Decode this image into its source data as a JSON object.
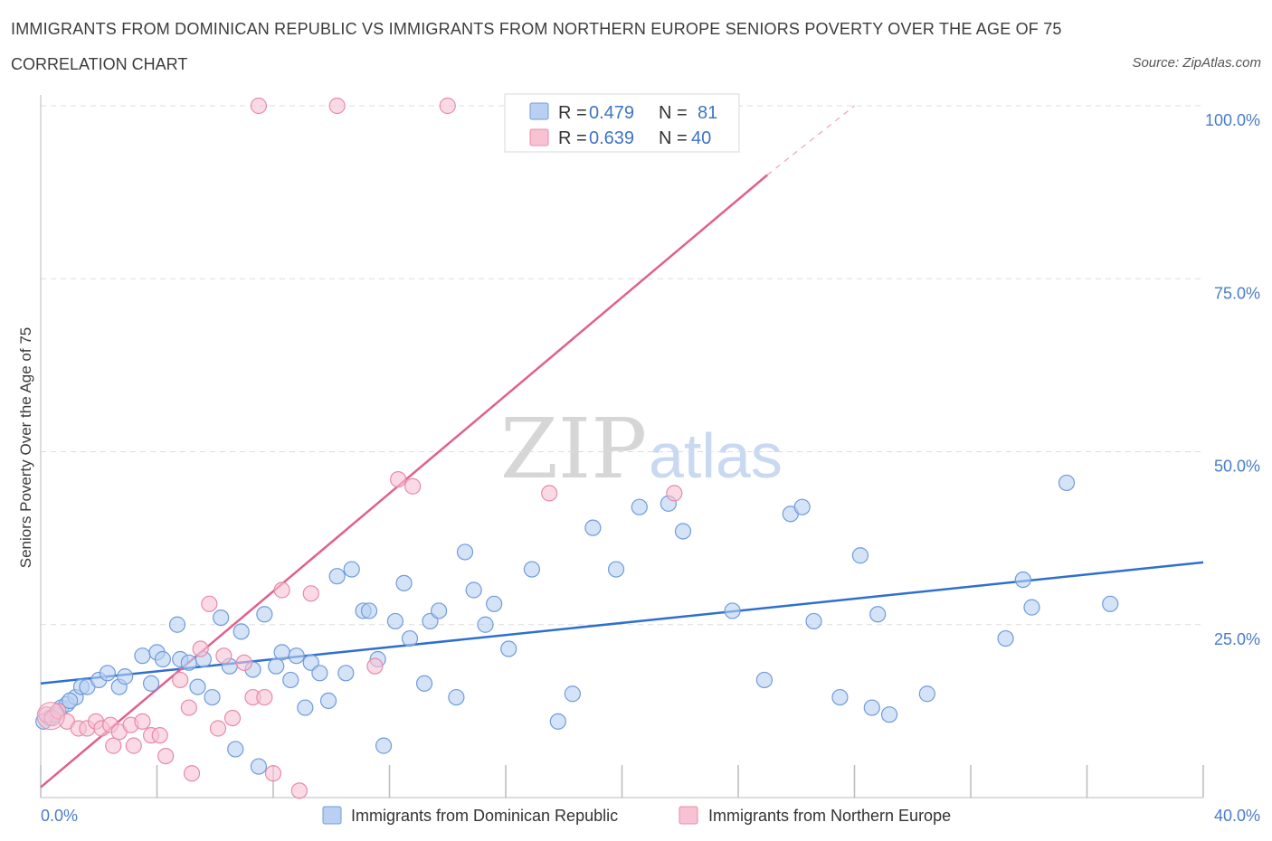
{
  "header": {
    "title": "IMMIGRANTS FROM DOMINICAN REPUBLIC VS IMMIGRANTS FROM NORTHERN EUROPE SENIORS POVERTY OVER THE AGE OF 75",
    "subtitle": "CORRELATION CHART",
    "source": "Source: ZipAtlas.com"
  },
  "watermark": {
    "part1": "ZIP",
    "part2": "atlas"
  },
  "legend_top": {
    "rows": [
      {
        "r_label": "R =",
        "r_value": "0.479",
        "n_label": "N =",
        "n_value": "81"
      },
      {
        "r_label": "R =",
        "r_value": "0.639",
        "n_label": "N =",
        "n_value": "40"
      }
    ]
  },
  "colors": {
    "blue_fill": "#b9d0f2",
    "blue_stroke": "#6f9bdd",
    "blue_line": "#2f6fce",
    "pink_fill": "#f7c3d3",
    "pink_stroke": "#e88aa8",
    "pink_line": "#e0608d",
    "grid": "#dddddd",
    "tick_text": "#4a7cc9"
  },
  "chart_data": {
    "type": "scatter",
    "title": "IMMIGRANTS FROM DOMINICAN REPUBLIC VS IMMIGRANTS FROM NORTHERN EUROPE SENIORS POVERTY OVER THE AGE OF 75",
    "xlabel": "",
    "ylabel": "Seniors Poverty Over the Age of 75",
    "xlim": [
      0,
      40
    ],
    "ylim": [
      0,
      100
    ],
    "x_tick_labels": [
      "0.0%",
      "40.0%"
    ],
    "y_tick_labels": [
      "100.0%",
      "75.0%",
      "50.0%",
      "25.0%"
    ],
    "y_ticks": [
      100,
      75,
      50,
      25
    ],
    "grid": true,
    "legend_position": "bottom",
    "series": [
      {
        "name": "Immigrants from Dominican Republic",
        "color": "#6f9bdd",
        "trend": {
          "x": [
            0,
            40
          ],
          "y": [
            16.5,
            34
          ]
        },
        "points": [
          [
            0.3,
            11.5
          ],
          [
            0.5,
            12
          ],
          [
            0.7,
            13
          ],
          [
            0.9,
            13.5
          ],
          [
            1.2,
            14.5
          ],
          [
            1.4,
            16
          ],
          [
            1.6,
            16
          ],
          [
            2,
            17
          ],
          [
            2.3,
            18
          ],
          [
            2.7,
            16
          ],
          [
            2.9,
            17.5
          ],
          [
            3.5,
            20.5
          ],
          [
            3.8,
            16.5
          ],
          [
            4,
            21
          ],
          [
            4.2,
            20
          ],
          [
            4.7,
            25
          ],
          [
            4.8,
            20
          ],
          [
            5.1,
            19.5
          ],
          [
            5.4,
            16
          ],
          [
            5.6,
            20
          ],
          [
            5.9,
            14.5
          ],
          [
            6.2,
            26
          ],
          [
            6.5,
            19
          ],
          [
            6.7,
            7
          ],
          [
            6.9,
            24
          ],
          [
            7.3,
            18.5
          ],
          [
            7.5,
            4.5
          ],
          [
            7.7,
            26.5
          ],
          [
            8.1,
            19
          ],
          [
            8.3,
            21
          ],
          [
            8.6,
            17
          ],
          [
            8.8,
            20.5
          ],
          [
            9.1,
            13
          ],
          [
            9.3,
            19.5
          ],
          [
            9.6,
            18
          ],
          [
            9.9,
            14
          ],
          [
            10.2,
            32
          ],
          [
            10.5,
            18
          ],
          [
            10.7,
            33
          ],
          [
            11.1,
            27
          ],
          [
            11.3,
            27
          ],
          [
            11.6,
            20
          ],
          [
            11.8,
            7.5
          ],
          [
            12.2,
            25.5
          ],
          [
            12.5,
            31
          ],
          [
            12.7,
            23
          ],
          [
            13.2,
            16.5
          ],
          [
            13.4,
            25.5
          ],
          [
            13.7,
            27
          ],
          [
            14.3,
            14.5
          ],
          [
            14.6,
            35.5
          ],
          [
            14.9,
            30
          ],
          [
            15.3,
            25
          ],
          [
            15.6,
            28
          ],
          [
            16.1,
            21.5
          ],
          [
            16.9,
            33
          ],
          [
            17.8,
            11
          ],
          [
            18.3,
            15
          ],
          [
            19,
            39
          ],
          [
            19.8,
            33
          ],
          [
            20.6,
            42
          ],
          [
            21.6,
            42.5
          ],
          [
            22.1,
            38.5
          ],
          [
            23.8,
            27
          ],
          [
            24.9,
            17
          ],
          [
            25.8,
            41
          ],
          [
            26.2,
            42
          ],
          [
            26.6,
            25.5
          ],
          [
            27.5,
            14.5
          ],
          [
            28.2,
            35
          ],
          [
            28.6,
            13
          ],
          [
            28.8,
            26.5
          ],
          [
            29.2,
            12
          ],
          [
            30.5,
            15
          ],
          [
            33.2,
            23
          ],
          [
            33.8,
            31.5
          ],
          [
            34.1,
            27.5
          ],
          [
            35.3,
            45.5
          ],
          [
            36.8,
            28
          ],
          [
            0.1,
            11
          ],
          [
            1.0,
            14
          ]
        ]
      },
      {
        "name": "Immigrants from Northern Europe",
        "color": "#e88aa8",
        "trend": {
          "x": [
            0,
            25
          ],
          "y": [
            1.5,
            90
          ]
        },
        "trend_dashed": {
          "x": [
            25,
            28
          ],
          "y": [
            90,
            100
          ]
        },
        "points": [
          [
            0.2,
            12
          ],
          [
            0.4,
            11.5
          ],
          [
            0.6,
            12.5
          ],
          [
            0.9,
            11
          ],
          [
            1.3,
            10
          ],
          [
            1.6,
            10
          ],
          [
            1.9,
            11
          ],
          [
            2.1,
            10
          ],
          [
            2.4,
            10.5
          ],
          [
            2.5,
            7.5
          ],
          [
            2.7,
            9.5
          ],
          [
            3.1,
            10.5
          ],
          [
            3.2,
            7.5
          ],
          [
            3.5,
            11
          ],
          [
            3.8,
            9
          ],
          [
            4.1,
            9
          ],
          [
            4.3,
            6
          ],
          [
            4.8,
            17
          ],
          [
            5.1,
            13
          ],
          [
            5.2,
            3.5
          ],
          [
            5.5,
            21.5
          ],
          [
            5.8,
            28
          ],
          [
            6.1,
            10
          ],
          [
            6.3,
            20.5
          ],
          [
            6.6,
            11.5
          ],
          [
            7.0,
            19.5
          ],
          [
            7.3,
            14.5
          ],
          [
            7.7,
            14.5
          ],
          [
            8.0,
            3.5
          ],
          [
            8.3,
            30
          ],
          [
            8.9,
            1
          ],
          [
            9.3,
            29.5
          ],
          [
            7.5,
            100
          ],
          [
            10.2,
            100
          ],
          [
            14.0,
            100
          ],
          [
            12.3,
            46
          ],
          [
            12.8,
            45
          ],
          [
            11.5,
            19
          ],
          [
            17.5,
            44
          ],
          [
            21.8,
            44
          ]
        ]
      }
    ]
  },
  "bottom_legend": {
    "items": [
      {
        "label": "Immigrants from Dominican Republic"
      },
      {
        "label": "Immigrants from Northern Europe"
      }
    ]
  }
}
